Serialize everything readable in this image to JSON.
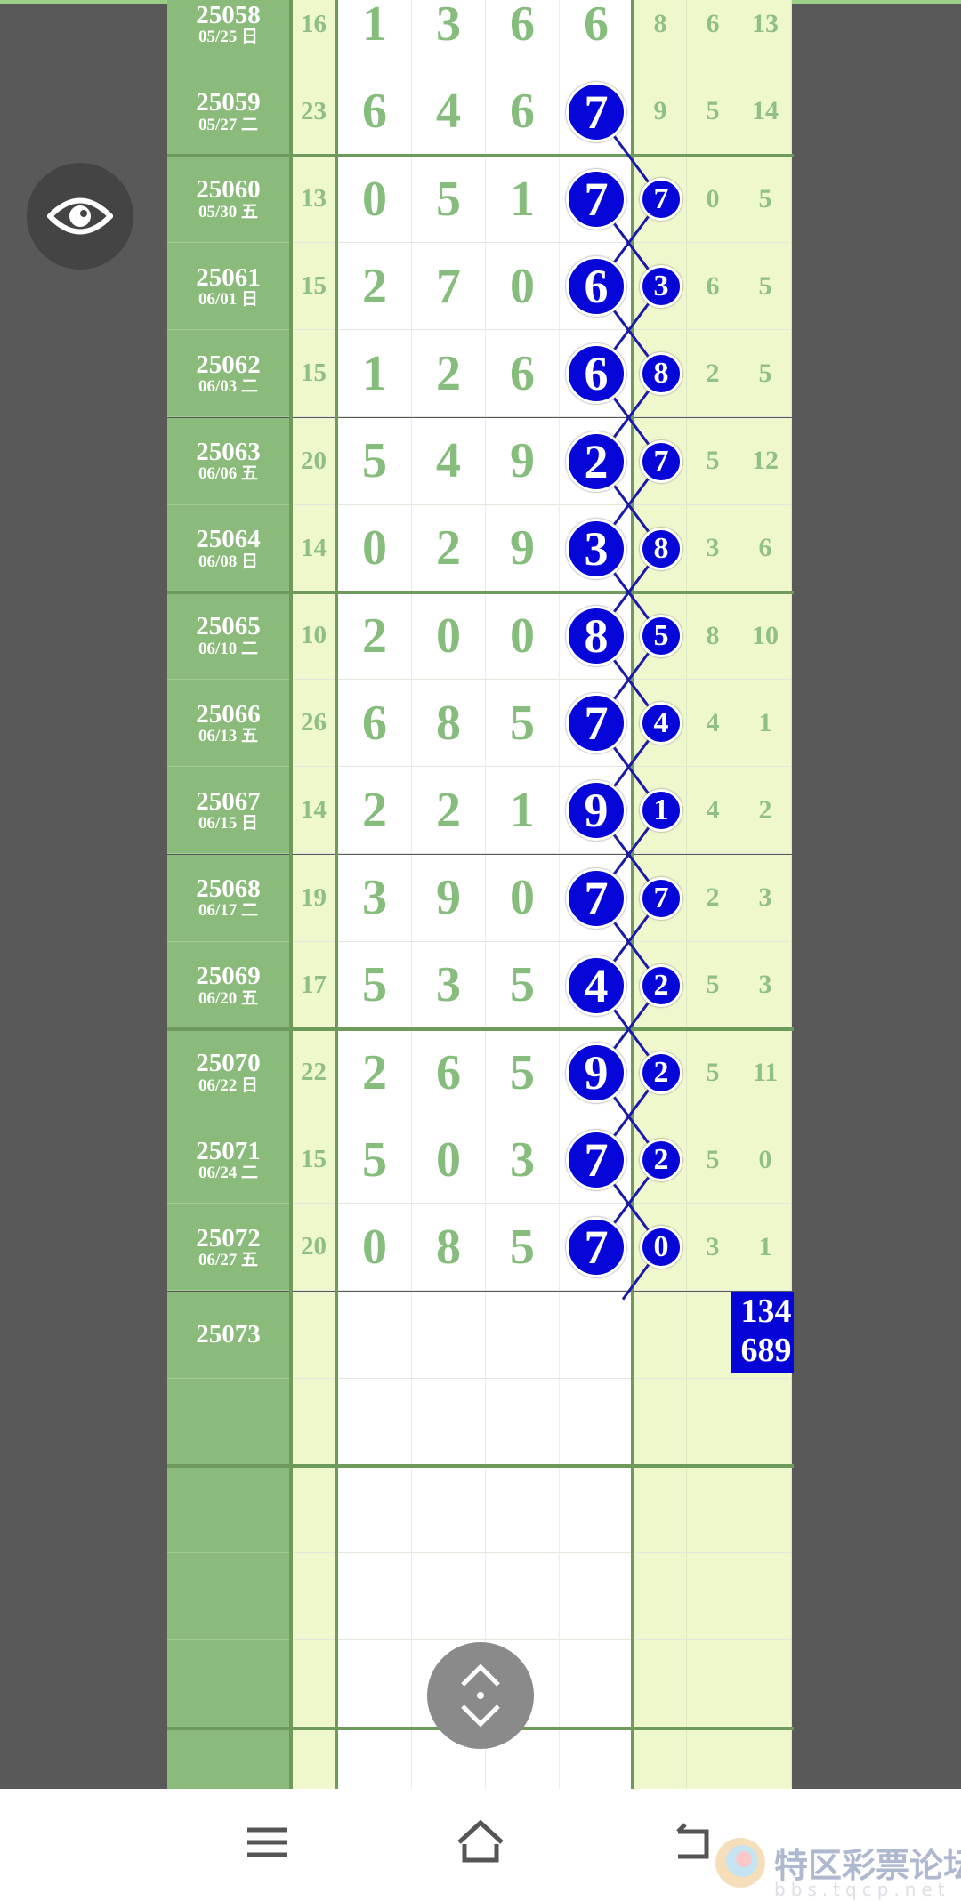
{
  "rows": [
    {
      "id": "25058",
      "date": "05/25 日",
      "sum": "16",
      "digits": [
        "1",
        "3",
        "6",
        "6"
      ],
      "ball": null,
      "small": null,
      "r1": "8",
      "r2": "6",
      "r3": "13"
    },
    {
      "id": "25059",
      "date": "05/27 二",
      "sum": "23",
      "digits": [
        "6",
        "4",
        "6",
        ""
      ],
      "ball": "7",
      "small": null,
      "r1": "9",
      "r2": "5",
      "r3": "14"
    },
    {
      "id": "25060",
      "date": "05/30 五",
      "sum": "13",
      "digits": [
        "0",
        "5",
        "1",
        ""
      ],
      "ball": "7",
      "small": "7",
      "r1": "",
      "r2": "0",
      "r3": "5"
    },
    {
      "id": "25061",
      "date": "06/01 日",
      "sum": "15",
      "digits": [
        "2",
        "7",
        "0",
        ""
      ],
      "ball": "6",
      "small": "3",
      "r1": "",
      "r2": "6",
      "r3": "5"
    },
    {
      "id": "25062",
      "date": "06/03 二",
      "sum": "15",
      "digits": [
        "1",
        "2",
        "6",
        ""
      ],
      "ball": "6",
      "small": "8",
      "r1": "",
      "r2": "2",
      "r3": "5"
    },
    {
      "id": "25063",
      "date": "06/06 五",
      "sum": "20",
      "digits": [
        "5",
        "4",
        "9",
        ""
      ],
      "ball": "2",
      "small": "7",
      "r1": "",
      "r2": "5",
      "r3": "12"
    },
    {
      "id": "25064",
      "date": "06/08 日",
      "sum": "14",
      "digits": [
        "0",
        "2",
        "9",
        ""
      ],
      "ball": "3",
      "small": "8",
      "r1": "",
      "r2": "3",
      "r3": "6"
    },
    {
      "id": "25065",
      "date": "06/10 二",
      "sum": "10",
      "digits": [
        "2",
        "0",
        "0",
        ""
      ],
      "ball": "8",
      "small": "5",
      "r1": "",
      "r2": "8",
      "r3": "10"
    },
    {
      "id": "25066",
      "date": "06/13 五",
      "sum": "26",
      "digits": [
        "6",
        "8",
        "5",
        ""
      ],
      "ball": "7",
      "small": "4",
      "r1": "",
      "r2": "4",
      "r3": "1"
    },
    {
      "id": "25067",
      "date": "06/15 日",
      "sum": "14",
      "digits": [
        "2",
        "2",
        "1",
        ""
      ],
      "ball": "9",
      "small": "1",
      "r1": "",
      "r2": "4",
      "r3": "2"
    },
    {
      "id": "25068",
      "date": "06/17 二",
      "sum": "19",
      "digits": [
        "3",
        "9",
        "0",
        ""
      ],
      "ball": "7",
      "small": "7",
      "r1": "",
      "r2": "2",
      "r3": "3"
    },
    {
      "id": "25069",
      "date": "06/20 五",
      "sum": "17",
      "digits": [
        "5",
        "3",
        "5",
        ""
      ],
      "ball": "4",
      "small": "2",
      "r1": "",
      "r2": "5",
      "r3": "3"
    },
    {
      "id": "25070",
      "date": "06/22 日",
      "sum": "22",
      "digits": [
        "2",
        "6",
        "5",
        ""
      ],
      "ball": "9",
      "small": "2",
      "r1": "",
      "r2": "5",
      "r3": "11"
    },
    {
      "id": "25071",
      "date": "06/24 二",
      "sum": "15",
      "digits": [
        "5",
        "0",
        "3",
        ""
      ],
      "ball": "7",
      "small": "2",
      "r1": "",
      "r2": "5",
      "r3": "0"
    },
    {
      "id": "25072",
      "date": "06/27 五",
      "sum": "20",
      "digits": [
        "0",
        "8",
        "5",
        ""
      ],
      "ball": "7",
      "small": "0",
      "r1": "",
      "r2": "3",
      "r3": "1"
    },
    {
      "id": "25073",
      "date": "",
      "sum": "",
      "digits": [
        "",
        "",
        "",
        ""
      ],
      "ball": null,
      "small": null,
      "r1": "",
      "r2": "",
      "r3": ""
    }
  ],
  "prediction": {
    "line1": "134",
    "line2": "689"
  },
  "colors": {
    "ball": "#0606d8",
    "id_column": "#8bbb7a",
    "digit": "#86bd7c",
    "side_column": "#eff7cc"
  },
  "watermark": {
    "name": "特区彩票论坛",
    "url": "bbs.tqcp.net"
  },
  "icons": {
    "eye": "eye-icon",
    "scroll": "scroll-up-down-icon",
    "menu": "menu-icon",
    "home": "home-icon",
    "back": "back-icon"
  }
}
